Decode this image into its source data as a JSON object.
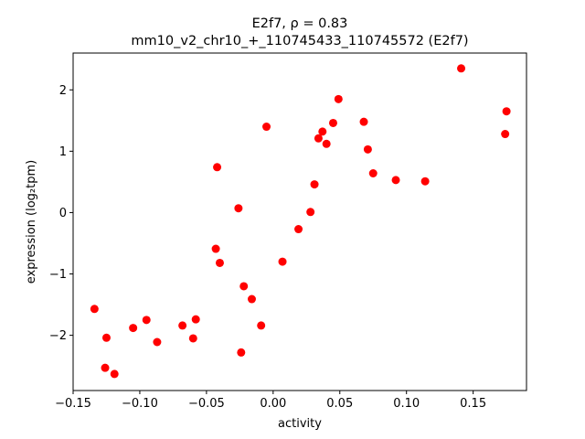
{
  "chart_data": {
    "type": "scatter",
    "title_line1": "E2f7, ρ = 0.83",
    "title_line2": "mm10_v2_chr10_+_110745433_110745572 (E2f7)",
    "xlabel": "activity",
    "ylabel": "expression (log₂tpm)",
    "xlim": [
      -0.15,
      0.19
    ],
    "ylim": [
      -2.9,
      2.6
    ],
    "xticks": [
      -0.15,
      -0.1,
      -0.05,
      0.0,
      0.05,
      0.1,
      0.15
    ],
    "xtick_labels": [
      "−0.15",
      "−0.10",
      "−0.05",
      "0.00",
      "0.05",
      "0.10",
      "0.15"
    ],
    "yticks": [
      -2,
      -1,
      0,
      1,
      2
    ],
    "ytick_labels": [
      "−2",
      "−1",
      "0",
      "1",
      "2"
    ],
    "grid": false,
    "point_color": "#ff0000",
    "points": [
      {
        "x": -0.134,
        "y": -1.57
      },
      {
        "x": -0.125,
        "y": -2.04
      },
      {
        "x": -0.126,
        "y": -2.53
      },
      {
        "x": -0.119,
        "y": -2.63
      },
      {
        "x": -0.105,
        "y": -1.88
      },
      {
        "x": -0.095,
        "y": -1.75
      },
      {
        "x": -0.087,
        "y": -2.11
      },
      {
        "x": -0.068,
        "y": -1.84
      },
      {
        "x": -0.06,
        "y": -2.05
      },
      {
        "x": -0.058,
        "y": -1.74
      },
      {
        "x": -0.043,
        "y": -0.59
      },
      {
        "x": -0.042,
        "y": 0.74
      },
      {
        "x": -0.04,
        "y": -0.82
      },
      {
        "x": -0.026,
        "y": 0.07
      },
      {
        "x": -0.024,
        "y": -2.28
      },
      {
        "x": -0.022,
        "y": -1.2
      },
      {
        "x": -0.016,
        "y": -1.41
      },
      {
        "x": -0.009,
        "y": -1.84
      },
      {
        "x": -0.005,
        "y": 1.4
      },
      {
        "x": 0.007,
        "y": -0.8
      },
      {
        "x": 0.019,
        "y": -0.27
      },
      {
        "x": 0.028,
        "y": 0.01
      },
      {
        "x": 0.031,
        "y": 0.46
      },
      {
        "x": 0.034,
        "y": 1.21
      },
      {
        "x": 0.037,
        "y": 1.32
      },
      {
        "x": 0.04,
        "y": 1.12
      },
      {
        "x": 0.045,
        "y": 1.46
      },
      {
        "x": 0.049,
        "y": 1.85
      },
      {
        "x": 0.068,
        "y": 1.48
      },
      {
        "x": 0.071,
        "y": 1.03
      },
      {
        "x": 0.075,
        "y": 0.64
      },
      {
        "x": 0.092,
        "y": 0.53
      },
      {
        "x": 0.114,
        "y": 0.51
      },
      {
        "x": 0.141,
        "y": 2.35
      },
      {
        "x": 0.174,
        "y": 1.28
      },
      {
        "x": 0.175,
        "y": 1.65
      }
    ]
  }
}
